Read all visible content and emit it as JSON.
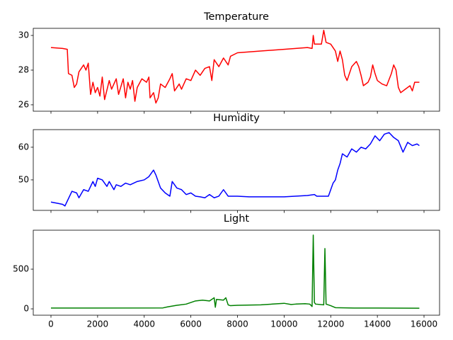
{
  "chart_data": [
    {
      "type": "line",
      "title": "Temperature",
      "color": "#ff0000",
      "x": [
        0,
        500,
        700,
        750,
        900,
        1000,
        1100,
        1200,
        1400,
        1500,
        1600,
        1700,
        1800,
        1900,
        2000,
        2100,
        2200,
        2300,
        2500,
        2600,
        2800,
        2900,
        3100,
        3200,
        3300,
        3400,
        3500,
        3600,
        3700,
        3900,
        4100,
        4200,
        4250,
        4400,
        4500,
        4600,
        4700,
        4900,
        5100,
        5200,
        5300,
        5500,
        5600,
        5800,
        6000,
        6200,
        6400,
        6600,
        6800,
        6900,
        7000,
        7200,
        7400,
        7600,
        7700,
        8000,
        9000,
        10000,
        11000,
        11200,
        11250,
        11300,
        11600,
        11700,
        11800,
        12000,
        12100,
        12200,
        12300,
        12400,
        12500,
        12600,
        12700,
        12800,
        12900,
        13100,
        13200,
        13300,
        13400,
        13600,
        13700,
        13800,
        13900,
        14000,
        14200,
        14400,
        14600,
        14700,
        14800,
        14900,
        15000,
        15200,
        15400,
        15500,
        15600,
        15800
      ],
      "values": [
        29.3,
        29.25,
        29.2,
        27.8,
        27.7,
        27.0,
        27.2,
        27.9,
        28.3,
        28.0,
        28.4,
        26.6,
        27.3,
        26.7,
        27.0,
        26.5,
        27.6,
        26.3,
        27.4,
        26.9,
        27.5,
        26.6,
        27.5,
        26.4,
        27.3,
        26.9,
        27.4,
        26.2,
        27.0,
        27.5,
        27.3,
        27.6,
        26.4,
        26.7,
        26.1,
        26.4,
        27.2,
        27.0,
        27.5,
        27.8,
        26.8,
        27.2,
        26.9,
        27.5,
        27.4,
        28.0,
        27.7,
        28.1,
        28.2,
        27.4,
        28.6,
        28.2,
        28.7,
        28.3,
        28.8,
        29.0,
        29.1,
        29.2,
        29.3,
        29.25,
        30.0,
        29.5,
        29.5,
        30.3,
        29.6,
        29.5,
        29.3,
        29.1,
        28.5,
        29.1,
        28.6,
        27.7,
        27.4,
        27.8,
        28.2,
        28.5,
        28.2,
        27.7,
        27.1,
        27.3,
        27.6,
        28.3,
        27.8,
        27.4,
        27.2,
        27.1,
        27.8,
        28.3,
        28.0,
        27.0,
        26.7,
        26.9,
        27.1,
        26.8,
        27.3,
        27.3
      ],
      "ylim": [
        25.63,
        30.41
      ],
      "yticks": [
        26,
        28,
        30
      ]
    },
    {
      "type": "line",
      "title": "Humidity",
      "color": "#0000ff",
      "x": [
        0,
        300,
        500,
        600,
        700,
        900,
        1100,
        1200,
        1400,
        1600,
        1800,
        1900,
        2000,
        2200,
        2400,
        2500,
        2700,
        2800,
        3000,
        3200,
        3400,
        3700,
        4000,
        4200,
        4400,
        4500,
        4700,
        4900,
        5100,
        5200,
        5400,
        5600,
        5800,
        6000,
        6200,
        6400,
        6600,
        6800,
        7000,
        7200,
        7400,
        7600,
        8000,
        8500,
        9000,
        10000,
        11000,
        11300,
        11400,
        11900,
        12000,
        12100,
        12200,
        12300,
        12400,
        12500,
        12700,
        12900,
        13100,
        13300,
        13500,
        13700,
        13900,
        14100,
        14300,
        14500,
        14700,
        14900,
        15100,
        15300,
        15500,
        15700,
        15800
      ],
      "values": [
        43.2,
        42.8,
        42.5,
        42.0,
        43.5,
        46.5,
        46.0,
        44.5,
        47.0,
        46.5,
        49.5,
        48.0,
        50.5,
        50.0,
        48.0,
        49.5,
        47.0,
        48.5,
        48.0,
        49.0,
        48.5,
        49.5,
        50.0,
        51.0,
        53.0,
        51.5,
        47.5,
        46.0,
        45.0,
        49.5,
        47.5,
        47.0,
        45.5,
        46.0,
        45.0,
        44.8,
        44.5,
        45.5,
        44.5,
        45.0,
        47.0,
        45.0,
        45.0,
        44.8,
        44.8,
        44.8,
        45.2,
        45.5,
        45.0,
        45.0,
        47.0,
        49.0,
        50.0,
        53.0,
        55.0,
        58.0,
        57.0,
        59.5,
        58.5,
        60.0,
        59.5,
        61.0,
        63.5,
        62.0,
        64.0,
        64.5,
        63.0,
        62.0,
        58.5,
        61.5,
        60.5,
        61.0,
        60.5
      ],
      "ylim": [
        40.65,
        65.4
      ],
      "yticks": [
        50,
        60
      ]
    },
    {
      "type": "line",
      "title": "Light",
      "color": "#008000",
      "x": [
        0,
        4800,
        5000,
        5400,
        5800,
        6200,
        6500,
        6800,
        7000,
        7050,
        7100,
        7400,
        7500,
        7600,
        7700,
        8000,
        9000,
        9500,
        10000,
        10300,
        10500,
        10900,
        11100,
        11200,
        11250,
        11300,
        11350,
        11700,
        11750,
        11800,
        12000,
        12200,
        13000,
        14000,
        15800
      ],
      "values": [
        10,
        12,
        25,
        45,
        60,
        100,
        110,
        100,
        140,
        20,
        120,
        110,
        140,
        50,
        40,
        45,
        50,
        60,
        70,
        55,
        60,
        65,
        60,
        30,
        930,
        80,
        60,
        50,
        760,
        60,
        40,
        15,
        10,
        10,
        8
      ],
      "ylim": [
        -80,
        991
      ],
      "yticks": [
        0,
        500
      ],
      "xlim": [
        -759,
        16667
      ],
      "xticks": [
        0,
        2000,
        4000,
        6000,
        8000,
        10000,
        12000,
        14000,
        16000
      ]
    }
  ]
}
